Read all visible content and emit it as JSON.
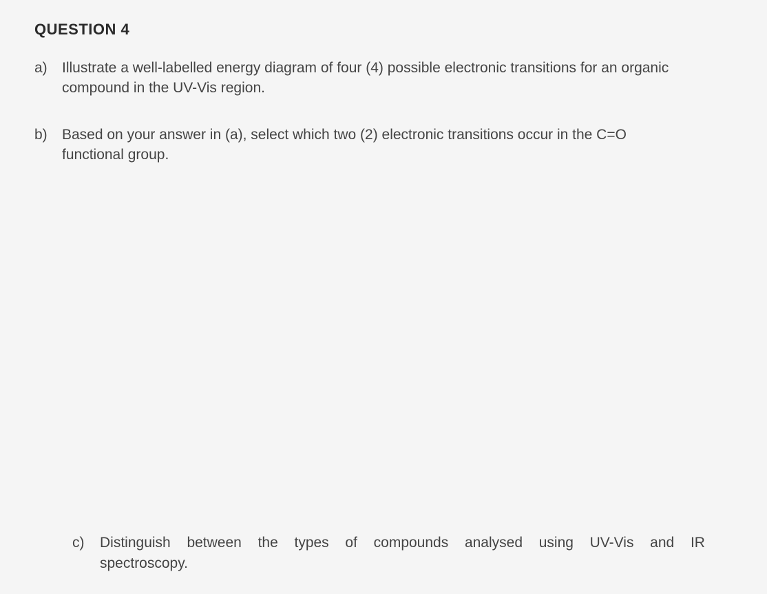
{
  "document": {
    "title": "QUESTION 4",
    "background_color": "#f5f5f5",
    "text_color": "#333333",
    "font_family": "Arial, Helvetica, sans-serif",
    "title_fontsize": 22,
    "body_fontsize": 21,
    "parts": [
      {
        "label": "a)",
        "text": "Illustrate a well-labelled energy diagram of four (4) possible electronic transitions for an organic compound in the UV-Vis region."
      },
      {
        "label": "b)",
        "text": "Based on your answer in (a), select which two (2) electronic transitions occur in the C=O functional group."
      },
      {
        "label": "c)",
        "words": [
          "Distinguish",
          "between",
          "the",
          "types",
          "of",
          "compounds",
          "analysed",
          "using",
          "UV-Vis",
          "and",
          "IR"
        ],
        "line2": "spectroscopy."
      }
    ]
  }
}
